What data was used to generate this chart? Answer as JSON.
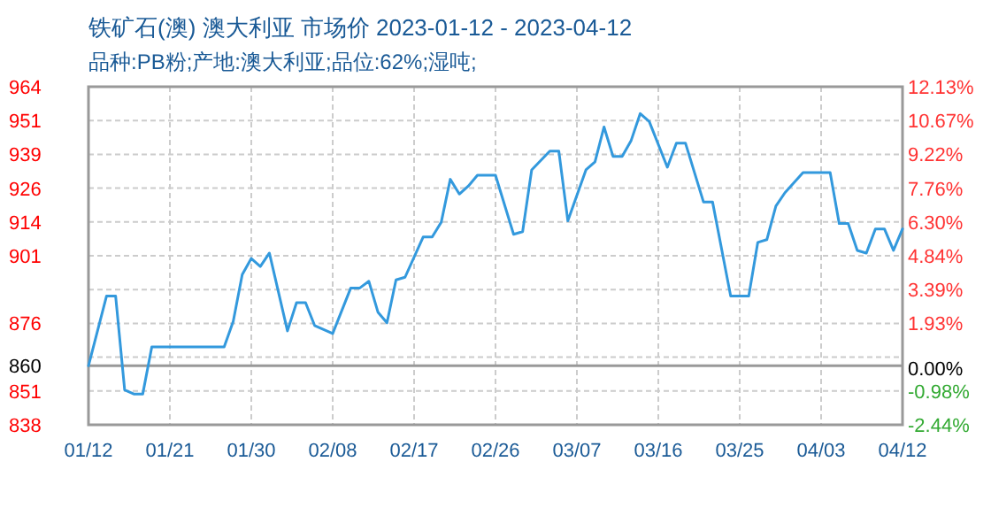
{
  "chart_data": {
    "type": "line",
    "title": "铁矿石(澳) 澳大利亚 市场价 2023-01-12 - 2023-04-12",
    "subtitle": "品种:PB粉;产地:澳大利亚;品位:62%;湿吨;",
    "x": [
      "2023-01-12",
      "2023-01-14",
      "2023-01-15",
      "2023-01-16",
      "2023-01-17",
      "2023-01-18",
      "2023-01-19",
      "2023-01-27",
      "2023-01-28",
      "2023-01-29",
      "2023-01-30",
      "2023-01-31",
      "2023-02-01",
      "2023-02-03",
      "2023-02-04",
      "2023-02-05",
      "2023-02-06",
      "2023-02-08",
      "2023-02-10",
      "2023-02-11",
      "2023-02-12",
      "2023-02-13",
      "2023-02-14",
      "2023-02-15",
      "2023-02-16",
      "2023-02-18",
      "2023-02-19",
      "2023-02-20",
      "2023-02-21",
      "2023-02-22",
      "2023-02-23",
      "2023-02-24",
      "2023-02-26",
      "2023-02-28",
      "2023-03-01",
      "2023-03-02",
      "2023-03-04",
      "2023-03-05",
      "2023-03-06",
      "2023-03-08",
      "2023-03-09",
      "2023-03-10",
      "2023-03-11",
      "2023-03-12",
      "2023-03-13",
      "2023-03-14",
      "2023-03-15",
      "2023-03-17",
      "2023-03-18",
      "2023-03-19",
      "2023-03-21",
      "2023-03-22",
      "2023-03-24",
      "2023-03-26",
      "2023-03-27",
      "2023-03-28",
      "2023-03-29",
      "2023-03-30",
      "2023-04-01",
      "2023-04-04",
      "2023-04-05",
      "2023-04-06",
      "2023-04-07",
      "2023-04-08",
      "2023-04-09",
      "2023-04-10",
      "2023-04-11",
      "2023-04-12"
    ],
    "series": [
      {
        "color": "#3399dd",
        "values": [
          860,
          886,
          886,
          851,
          849.5,
          849.5,
          867,
          867,
          876.5,
          894,
          900,
          897,
          902,
          873,
          883.5,
          883.5,
          875,
          872,
          889,
          889,
          891.5,
          880,
          876,
          892,
          893,
          908,
          908,
          913.5,
          929.5,
          924,
          927,
          931,
          931,
          909,
          910,
          933,
          940,
          940,
          914,
          933,
          936,
          949,
          938,
          938,
          944,
          954,
          951,
          934,
          943,
          943,
          921,
          921,
          886,
          886,
          906,
          907,
          919.5,
          924.5,
          932,
          932,
          913,
          913,
          903,
          902,
          911,
          911,
          903,
          911
        ]
      }
    ],
    "xlim": [
      "2023-01-12",
      "2023-04-12"
    ],
    "xticks": [
      {
        "value": "2023-01-12",
        "label": "01/12"
      },
      {
        "value": "2023-01-21",
        "label": "01/21"
      },
      {
        "value": "2023-01-30",
        "label": "01/30"
      },
      {
        "value": "2023-02-08",
        "label": "02/08"
      },
      {
        "value": "2023-02-17",
        "label": "02/17"
      },
      {
        "value": "2023-02-26",
        "label": "02/26"
      },
      {
        "value": "2023-03-07",
        "label": "03/07"
      },
      {
        "value": "2023-03-16",
        "label": "03/16"
      },
      {
        "value": "2023-03-25",
        "label": "03/25"
      },
      {
        "value": "2023-04-03",
        "label": "04/03"
      },
      {
        "value": "2023-04-12",
        "label": "04/12"
      }
    ],
    "ylim": [
      838,
      964
    ],
    "yticks": [
      964,
      {
        "value": 951.4,
        "label": "951"
      },
      {
        "value": 938.8,
        "label": "939"
      },
      {
        "value": 926.2,
        "label": "926"
      },
      {
        "value": 913.6,
        "label": "914"
      },
      901,
      {
        "value": 888.4,
        "label": null
      },
      {
        "value": 875.8,
        "label": "876"
      },
      {
        "value": 863.2,
        "label": null
      },
      {
        "value": 850.6,
        "label": "851"
      },
      838
    ],
    "y2lim": [
      -2.44,
      12.13
    ],
    "y2ticks": [
      {
        "value": 12.13,
        "label": "12.13%"
      },
      {
        "value": 10.67,
        "label": "10.67%"
      },
      {
        "value": 9.22,
        "label": "9.22%"
      },
      {
        "value": 7.76,
        "label": "7.76%"
      },
      {
        "value": 6.3,
        "label": "6.30%"
      },
      {
        "value": 4.84,
        "label": "4.84%"
      },
      {
        "value": 3.39,
        "label": "3.39%"
      },
      {
        "value": 1.93,
        "label": "1.93%"
      },
      {
        "value": 0,
        "label": "0.00%"
      },
      {
        "value": -0.98,
        "label": "-0.98%"
      },
      {
        "value": -2.44,
        "label": "-2.44%"
      }
    ],
    "ref_lines": [
      {
        "axis": "y",
        "value": 860,
        "label": "860",
        "color": "#999999"
      }
    ],
    "grid": true
  }
}
